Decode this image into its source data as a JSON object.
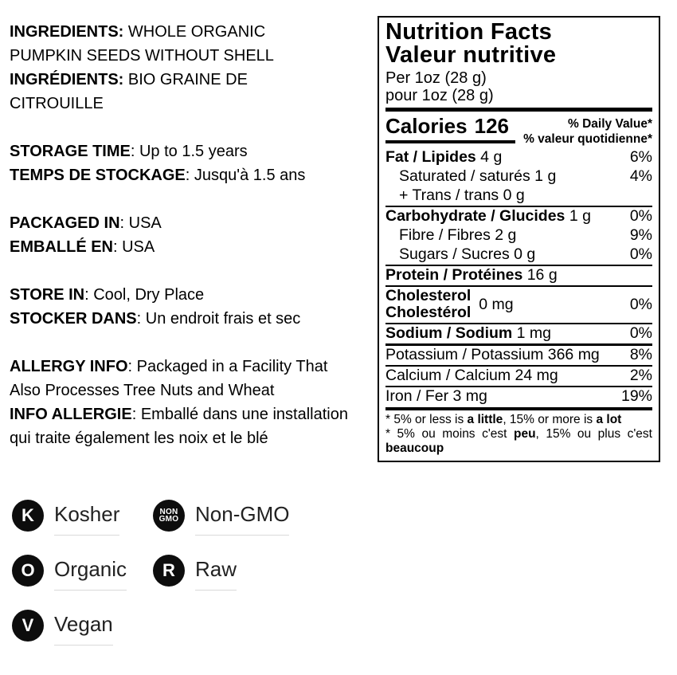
{
  "left": {
    "sections": [
      {
        "lines": [
          {
            "b": "INGREDIENTS:",
            "r": " WHOLE ORGANIC"
          },
          {
            "b": "",
            "r": "PUMPKIN SEEDS WITHOUT SHELL"
          },
          {
            "b": "INGRÉDIENTS:",
            "r": " BIO GRAINE DE"
          },
          {
            "b": "",
            "r": "CITROUILLE"
          }
        ]
      },
      {
        "lines": [
          {
            "b": "STORAGE TIME",
            "r": ": Up to 1.5 years"
          },
          {
            "b": "TEMPS DE STOCKAGE",
            "r": ": Jusqu'à 1.5 ans"
          }
        ]
      },
      {
        "lines": [
          {
            "b": "PACKAGED IN",
            "r": ": USA"
          },
          {
            "b": "EMBALLÉ EN",
            "r": ": USA"
          }
        ]
      },
      {
        "lines": [
          {
            "b": "STORE IN",
            "r": ": Cool, Dry Place"
          },
          {
            "b": "STOCKER DANS",
            "r": ": Un endroit frais et sec"
          }
        ]
      },
      {
        "lines": [
          {
            "b": "ALLERGY INFO",
            "r": ": Packaged in a Facility That"
          },
          {
            "b": "",
            "r": "Also Processes Tree Nuts and Wheat"
          },
          {
            "b": "INFO ALLERGIE",
            "r": ": Emballé dans une installation"
          },
          {
            "b": "",
            "r": "qui traite également les noix et le blé"
          }
        ]
      }
    ]
  },
  "nutrition": {
    "title_en": "Nutrition Facts",
    "title_fr": "Valeur nutritive",
    "serving_en": "Per 1oz (28 g)",
    "serving_fr": "pour 1oz (28 g)",
    "calories": {
      "label": "Calories",
      "value": "126"
    },
    "daily_value_en": "% Daily Value*",
    "daily_value_fr": "% valeur quotidienne*",
    "rows": [
      {
        "b": "Fat / Lipides",
        "r": " 4 g",
        "pct": "6%"
      },
      {
        "b": "",
        "r": "Saturated / saturés 1 g",
        "pct": "4%"
      },
      {
        "b": "",
        "r": "+ Trans / trans 0 g",
        "pct": ""
      },
      {
        "b": "Carbohydrate / Glucides",
        "r": " 1 g",
        "pct": "0%"
      },
      {
        "b": "",
        "r": "Fibre / Fibres 2 g",
        "pct": "9%"
      },
      {
        "b": "",
        "r": "Sugars / Sucres 0 g",
        "pct": "0%"
      },
      {
        "b": "Protein / Protéines",
        "r": " 16 g",
        "pct": ""
      },
      {
        "name_en": "Cholesterol",
        "name_fr": "Cholestérol",
        "r": "0 mg",
        "pct": "0%"
      },
      {
        "b": "Sodium / Sodium",
        "r": " 1 mg",
        "pct": "0%"
      },
      {
        "b": "",
        "r": "Potassium / Potassium 366 mg",
        "pct": "8%"
      },
      {
        "b": "",
        "r": "Calcium / Calcium 24 mg",
        "pct": "2%"
      },
      {
        "b": "",
        "r": "Iron / Fer 3 mg",
        "pct": "19%"
      }
    ],
    "footnote_en": [
      "* 5% or less is ",
      "a little",
      ", 15% or more is ",
      "a lot"
    ],
    "footnote_fr": [
      "* 5% ou moins c'est ",
      "peu",
      ", 15% ou plus c'est ",
      "beaucoup"
    ]
  },
  "badges": {
    "items": [
      {
        "icon_text": "K",
        "label": "Kosher"
      },
      {
        "icon_line1": "NON",
        "icon_line2": "GMO",
        "label": "Non-GMO"
      },
      {
        "icon_text": "O",
        "label": "Organic"
      },
      {
        "icon_text": "R",
        "label": "Raw"
      },
      {
        "icon_text": "V",
        "label": "Vegan"
      }
    ]
  },
  "colors": {
    "text": "#000000",
    "badge_bg": "#0d0d0d",
    "badge_underline": "#d9d9d9"
  }
}
